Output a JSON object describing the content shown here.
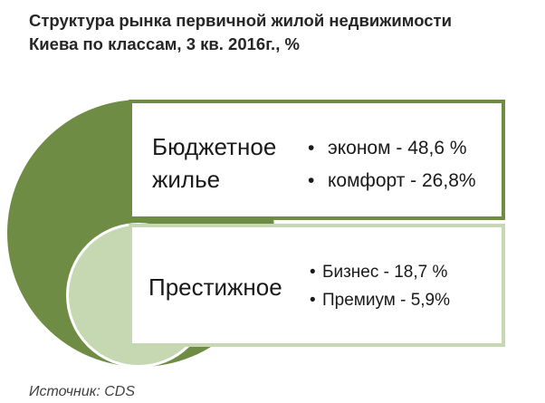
{
  "title": {
    "line1": "Структура рынка первичной жилой недвижимости",
    "line2": "Киева по классам, 3 кв. 2016г., %"
  },
  "colors": {
    "dark_green": "#6e8c43",
    "light_green": "#c5d8b1"
  },
  "segments": [
    {
      "label_lines": [
        "Бюджетное",
        "жилье"
      ],
      "items": [
        {
          "bullet": "•",
          "text": "эконом - 48,6 %"
        },
        {
          "bullet": "•",
          "text": "комфорт - 26,8%"
        }
      ]
    },
    {
      "label_lines": [
        "Престижное"
      ],
      "items": [
        {
          "bullet": "•",
          "text": "Бизнес - 18,7 %"
        },
        {
          "bullet": "•",
          "text": "Премиум - 5,9%"
        }
      ]
    }
  ],
  "source": "Источник: CDS"
}
